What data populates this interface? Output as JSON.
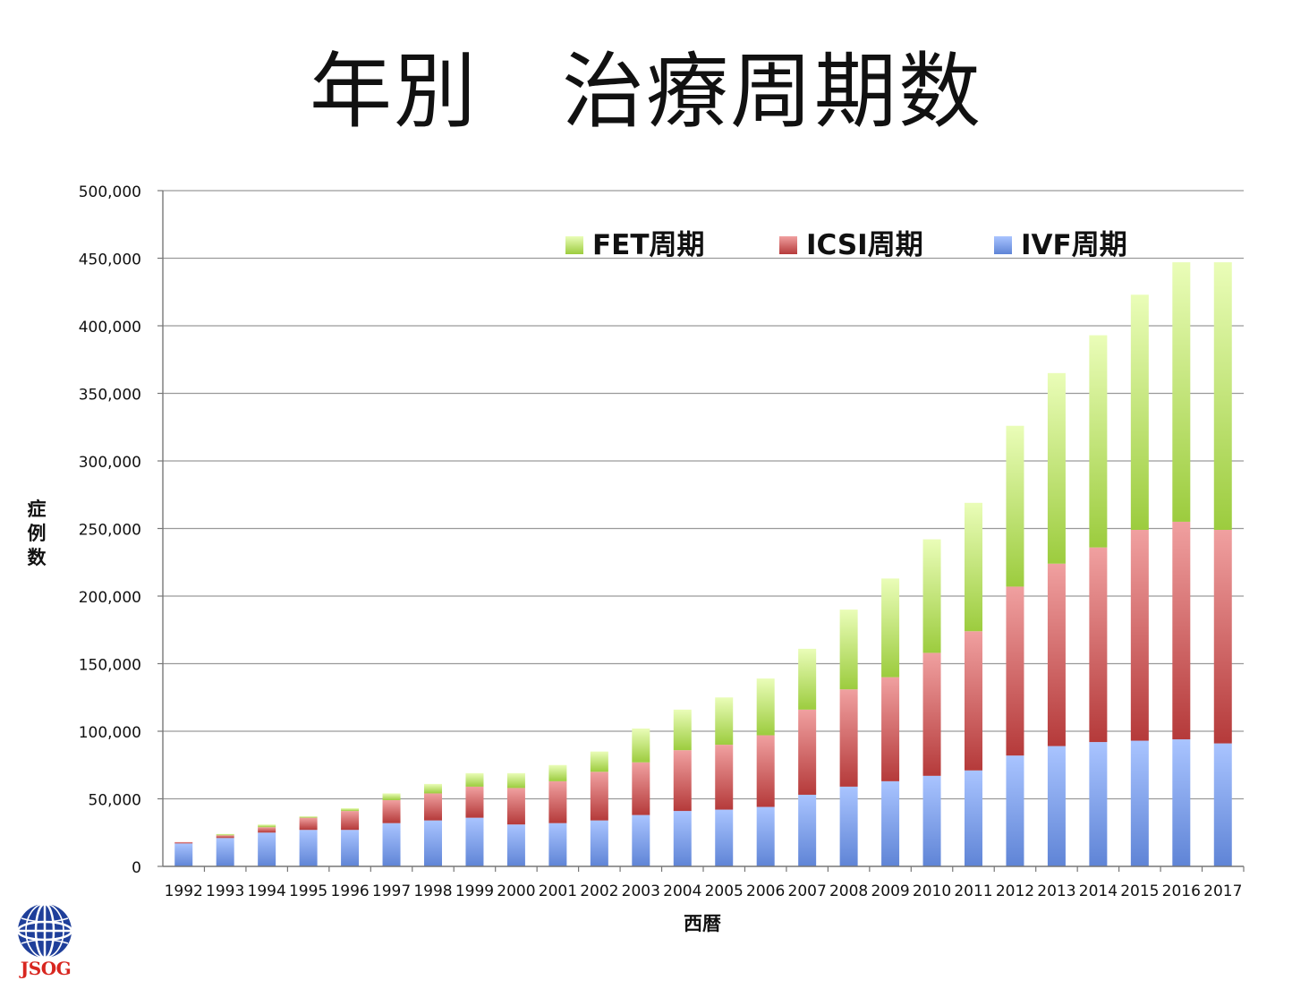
{
  "title": "年別　治療周期数",
  "logo": {
    "text": "JSOG",
    "colors": {
      "blue": "#1f3f9a",
      "red": "#d8261f"
    }
  },
  "chart_data": {
    "type": "bar",
    "stacked": true,
    "title": "年別　治療周期数",
    "xlabel": "西暦",
    "ylabel": "症例数",
    "ylim": [
      0,
      500000
    ],
    "yticks": [
      "0",
      "50,000",
      "100,000",
      "150,000",
      "200,000",
      "250,000",
      "300,000",
      "350,000",
      "400,000",
      "450,000",
      "500,000"
    ],
    "ytick_values": [
      0,
      50000,
      100000,
      150000,
      200000,
      250000,
      300000,
      350000,
      400000,
      450000,
      500000
    ],
    "grid": true,
    "legend_position": "top-right",
    "categories": [
      "1992",
      "1993",
      "1994",
      "1995",
      "1996",
      "1997",
      "1998",
      "1999",
      "2000",
      "2001",
      "2002",
      "2003",
      "2004",
      "2005",
      "2006",
      "2007",
      "2008",
      "2009",
      "2010",
      "2011",
      "2012",
      "2013",
      "2014",
      "2015",
      "2016",
      "2017"
    ],
    "series": [
      {
        "name": "IVF周期",
        "color": "#7a9ee8",
        "values": [
          17000,
          21000,
          25000,
          27000,
          27000,
          32000,
          34000,
          36000,
          31000,
          32000,
          34000,
          38000,
          41000,
          42000,
          44000,
          53000,
          59000,
          63000,
          67000,
          71000,
          82000,
          89000,
          92000,
          93000,
          94000,
          91000
        ]
      },
      {
        "name": "ICSI周期",
        "color": "#d05a5a",
        "values": [
          1000,
          2000,
          4000,
          9000,
          14000,
          17000,
          20000,
          23000,
          27000,
          31000,
          36000,
          39000,
          45000,
          48000,
          53000,
          63000,
          72000,
          77000,
          91000,
          103000,
          125000,
          135000,
          144000,
          156000,
          161000,
          158000
        ]
      },
      {
        "name": "FET周期",
        "color": "#b4dc5a",
        "values": [
          0,
          1000,
          2000,
          1000,
          2000,
          5000,
          7000,
          10000,
          11000,
          12000,
          15000,
          25000,
          30000,
          35000,
          42000,
          45000,
          59000,
          73000,
          84000,
          95000,
          119000,
          141000,
          157000,
          174000,
          192000,
          198000
        ]
      }
    ],
    "legend_order": [
      "FET周期",
      "ICSI周期",
      "IVF周期"
    ]
  }
}
